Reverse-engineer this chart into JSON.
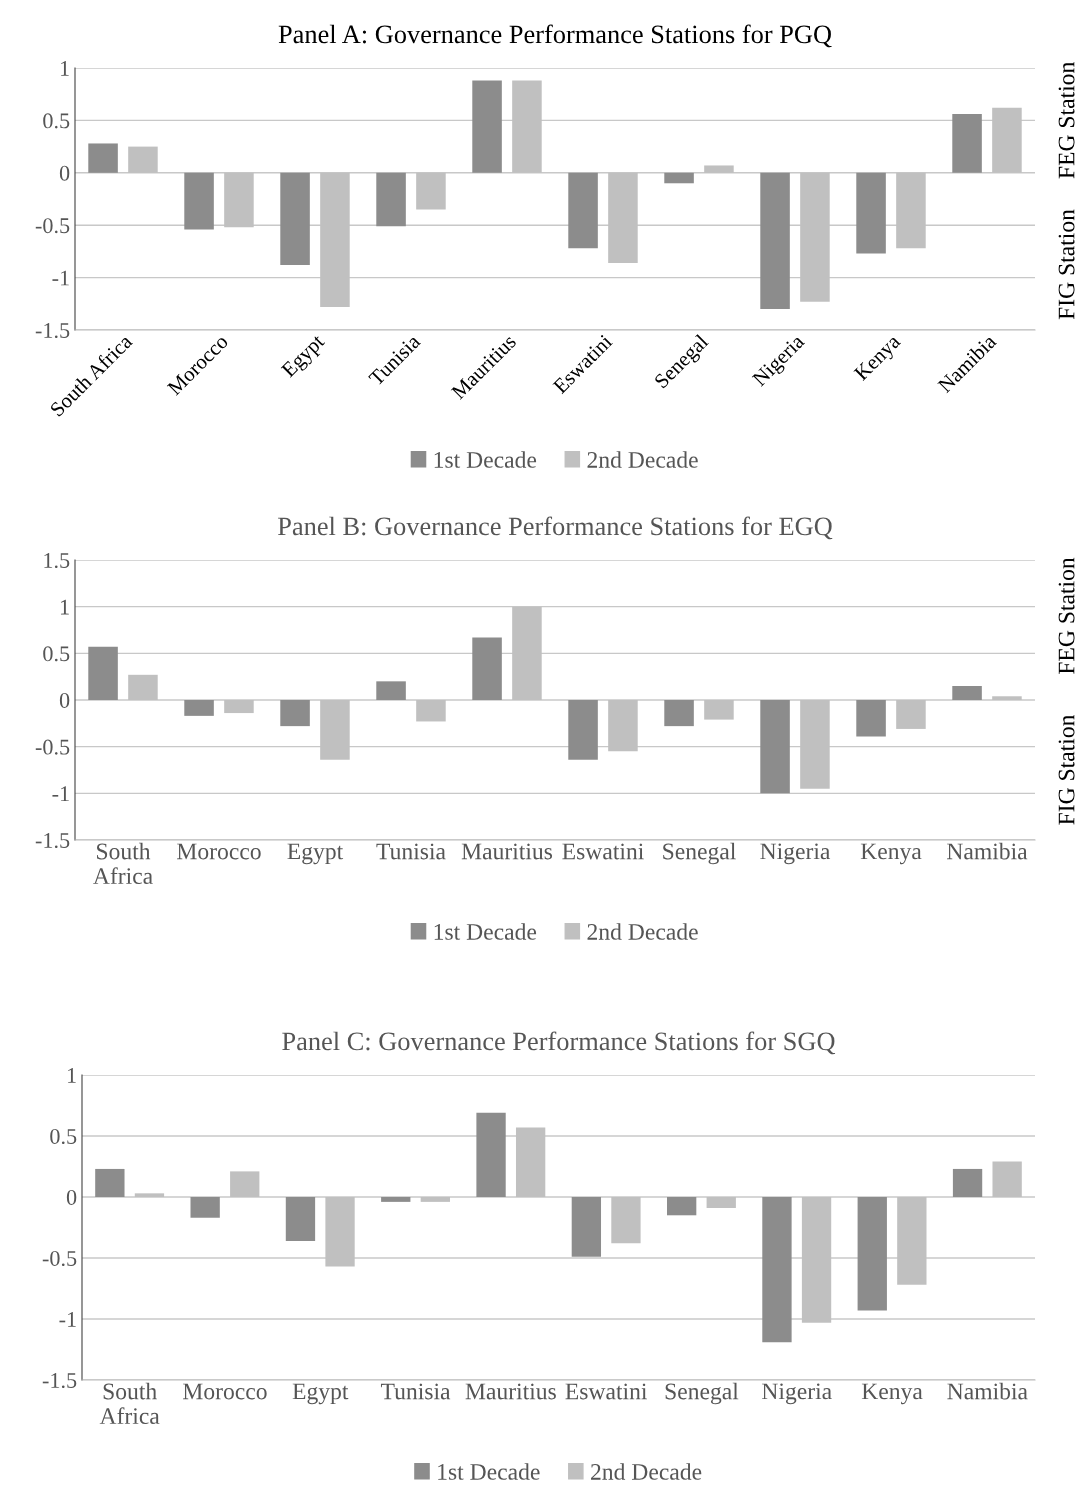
{
  "chart_data": [
    {
      "type": "bar",
      "title": "Panel A: Governance Performance Stations for PGQ",
      "categories": [
        "South Africa",
        "Morocco",
        "Egypt",
        "Tunisia",
        "Mauritius",
        "Eswatini",
        "Senegal",
        "Nigeria",
        "Kenya",
        "Namibia"
      ],
      "series": [
        {
          "name": "1st Decade",
          "color": "#8c8c8c",
          "values": [
            0.28,
            -0.54,
            -0.88,
            -0.51,
            0.88,
            -0.72,
            -0.1,
            -1.3,
            -0.77,
            0.56
          ]
        },
        {
          "name": "2nd Decade",
          "color": "#c0c0c0",
          "values": [
            0.25,
            -0.52,
            -1.28,
            -0.35,
            0.88,
            -0.86,
            0.07,
            -1.23,
            -0.72,
            0.62
          ]
        }
      ],
      "ylim": [
        -1.5,
        1
      ],
      "yticks": [
        -1.5,
        -1,
        -0.5,
        0,
        0.5,
        1
      ],
      "grid": "y",
      "legend": "bottom",
      "annotations": [
        "FEG Station",
        "FIG Station"
      ]
    },
    {
      "type": "bar",
      "title": "Panel B: Governance Performance Stations for EGQ",
      "categories": [
        "South Africa",
        "Morocco",
        "Egypt",
        "Tunisia",
        "Mauritius",
        "Eswatini",
        "Senegal",
        "Nigeria",
        "Kenya",
        "Namibia"
      ],
      "series": [
        {
          "name": "1st Decade",
          "color": "#8c8c8c",
          "values": [
            0.57,
            -0.17,
            -0.28,
            0.2,
            0.67,
            -0.64,
            -0.28,
            -1.0,
            -0.39,
            0.15
          ]
        },
        {
          "name": "2nd Decade",
          "color": "#c0c0c0",
          "values": [
            0.27,
            -0.14,
            -0.64,
            -0.23,
            1.0,
            -0.55,
            -0.21,
            -0.95,
            -0.31,
            0.04
          ]
        }
      ],
      "ylim": [
        -1.5,
        1.5
      ],
      "yticks": [
        -1.5,
        -1,
        -0.5,
        0,
        0.5,
        1,
        1.5
      ],
      "grid": "y",
      "legend": "bottom",
      "annotations": [
        "FEG Station",
        "FIG Station"
      ]
    },
    {
      "type": "bar",
      "title": "Panel C: Governance Performance Stations for SGQ",
      "categories": [
        "South Africa",
        "Morocco",
        "Egypt",
        "Tunisia",
        "Mauritius",
        "Eswatini",
        "Senegal",
        "Nigeria",
        "Kenya",
        "Namibia"
      ],
      "series": [
        {
          "name": "1st Decade",
          "color": "#8c8c8c",
          "values": [
            0.23,
            -0.17,
            -0.36,
            -0.04,
            0.69,
            -0.49,
            -0.15,
            -1.19,
            -0.93,
            0.23
          ]
        },
        {
          "name": "2nd Decade",
          "color": "#c0c0c0",
          "values": [
            0.03,
            0.21,
            -0.57,
            -0.04,
            0.57,
            -0.38,
            -0.09,
            -1.03,
            -0.72,
            0.29
          ]
        }
      ],
      "ylim": [
        -1.5,
        1
      ],
      "yticks": [
        -1.5,
        -1,
        -0.5,
        0,
        0.5,
        1
      ],
      "grid": "y",
      "legend": "bottom"
    }
  ]
}
